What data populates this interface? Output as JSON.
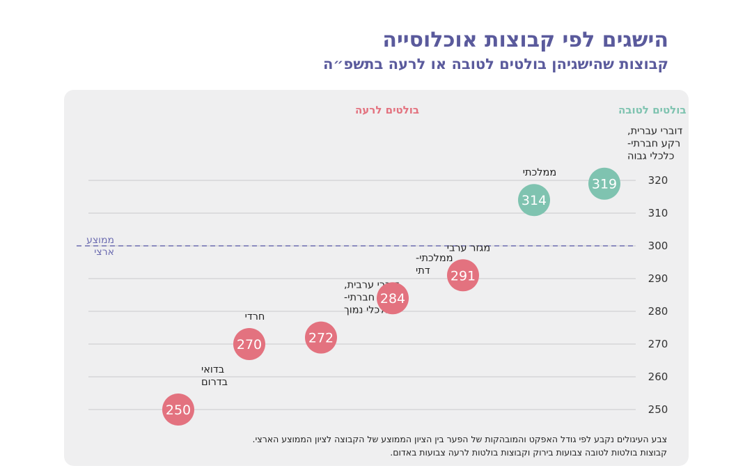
{
  "header": {
    "title": "הישגים לפי קבוצות אוכלוסייה",
    "subtitle": "קבוצות שהישגיהן בולטים לטובה או לרעה בתשפ״ה"
  },
  "legend": {
    "good_label": "בולטים לטובה",
    "bad_label": "בולטים לרעה"
  },
  "colors": {
    "good": "#7fc3b0",
    "bad": "#e3727f",
    "average": "#6b6bb0",
    "title": "#5a5a9c"
  },
  "footnote": {
    "line1": "צבע העיגולים נקבע לפי גודל האפקט והמובהקות של הפער בין הציון הממוצע של הקבוצה לציון הממוצע הארצי.",
    "line2": "קבוצות בולטות לטובה צבועות בירוק וקבוצות בולטות לרעה צבועות באדום."
  },
  "chart_data": {
    "type": "scatter",
    "title": "הישגים לפי קבוצות אוכלוסייה",
    "subtitle": "קבוצות שהישגיהן בולטים לטובה או לרעה בתשפ״ה",
    "ylim": [
      250,
      320
    ],
    "yticks": [
      250,
      260,
      270,
      280,
      290,
      300,
      310,
      320
    ],
    "grid": true,
    "national_average": {
      "value": 300,
      "label_lines": [
        "ממוצע",
        "ארצי"
      ]
    },
    "points": [
      {
        "label_lines": [
          "בדואי",
          "בדרום"
        ],
        "value": 250,
        "group": "bad"
      },
      {
        "label_lines": [
          "חרדי"
        ],
        "value": 270,
        "group": "bad"
      },
      {
        "label_lines": [
          "דוברי ערבית,",
          "רקע חברתי-",
          "כלכלי נמוך"
        ],
        "value": 272,
        "group": "bad"
      },
      {
        "label_lines": [
          "ממלכתי-",
          "דתי"
        ],
        "value": 284,
        "group": "bad"
      },
      {
        "label_lines": [
          "מגזר ערבי"
        ],
        "value": 291,
        "group": "bad"
      },
      {
        "label_lines": [
          "ממלכתי"
        ],
        "value": 314,
        "group": "good"
      },
      {
        "label_lines": [
          "דוברי עברית,",
          "רקע חברתי-",
          "כלכלי גבוה"
        ],
        "value": 319,
        "group": "good"
      }
    ]
  }
}
